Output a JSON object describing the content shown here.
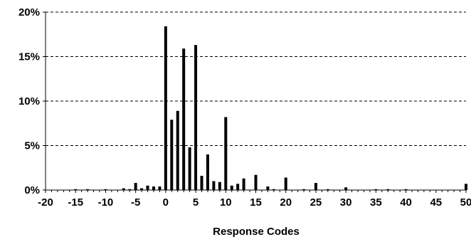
{
  "chart_data": {
    "type": "bar",
    "title": "",
    "xlabel": "Response Codes",
    "ylabel": "",
    "xlim": [
      -20,
      50
    ],
    "ylim": [
      0,
      20
    ],
    "x_ticks": [
      -20,
      -15,
      -10,
      -5,
      0,
      5,
      10,
      15,
      20,
      25,
      30,
      35,
      40,
      45,
      50
    ],
    "y_ticks": [
      0,
      5,
      10,
      15,
      20
    ],
    "y_tick_labels": [
      "0%",
      "5%",
      "10%",
      "15%",
      "20%"
    ],
    "grid": "horizontal-dashed",
    "legend": "none",
    "bar_color": "#000000",
    "series": [
      {
        "x": [
          -15,
          -13,
          -10,
          -7,
          -6,
          -5,
          -4,
          -3,
          -2,
          -1,
          0,
          1,
          2,
          3,
          4,
          5,
          6,
          7,
          8,
          9,
          10,
          11,
          12,
          13,
          15,
          17,
          18,
          20,
          23,
          25,
          27,
          30,
          35,
          37,
          40,
          50
        ],
        "values": [
          0.1,
          0.1,
          0.1,
          0.2,
          0.1,
          0.8,
          0.2,
          0.5,
          0.4,
          0.4,
          18.4,
          7.9,
          8.9,
          15.9,
          4.8,
          16.3,
          1.6,
          4.0,
          1.0,
          0.9,
          8.2,
          0.5,
          0.7,
          1.3,
          1.7,
          0.4,
          0.1,
          1.4,
          0.1,
          0.8,
          0.1,
          0.3,
          0.1,
          0.1,
          0.1,
          0.7
        ]
      }
    ]
  }
}
